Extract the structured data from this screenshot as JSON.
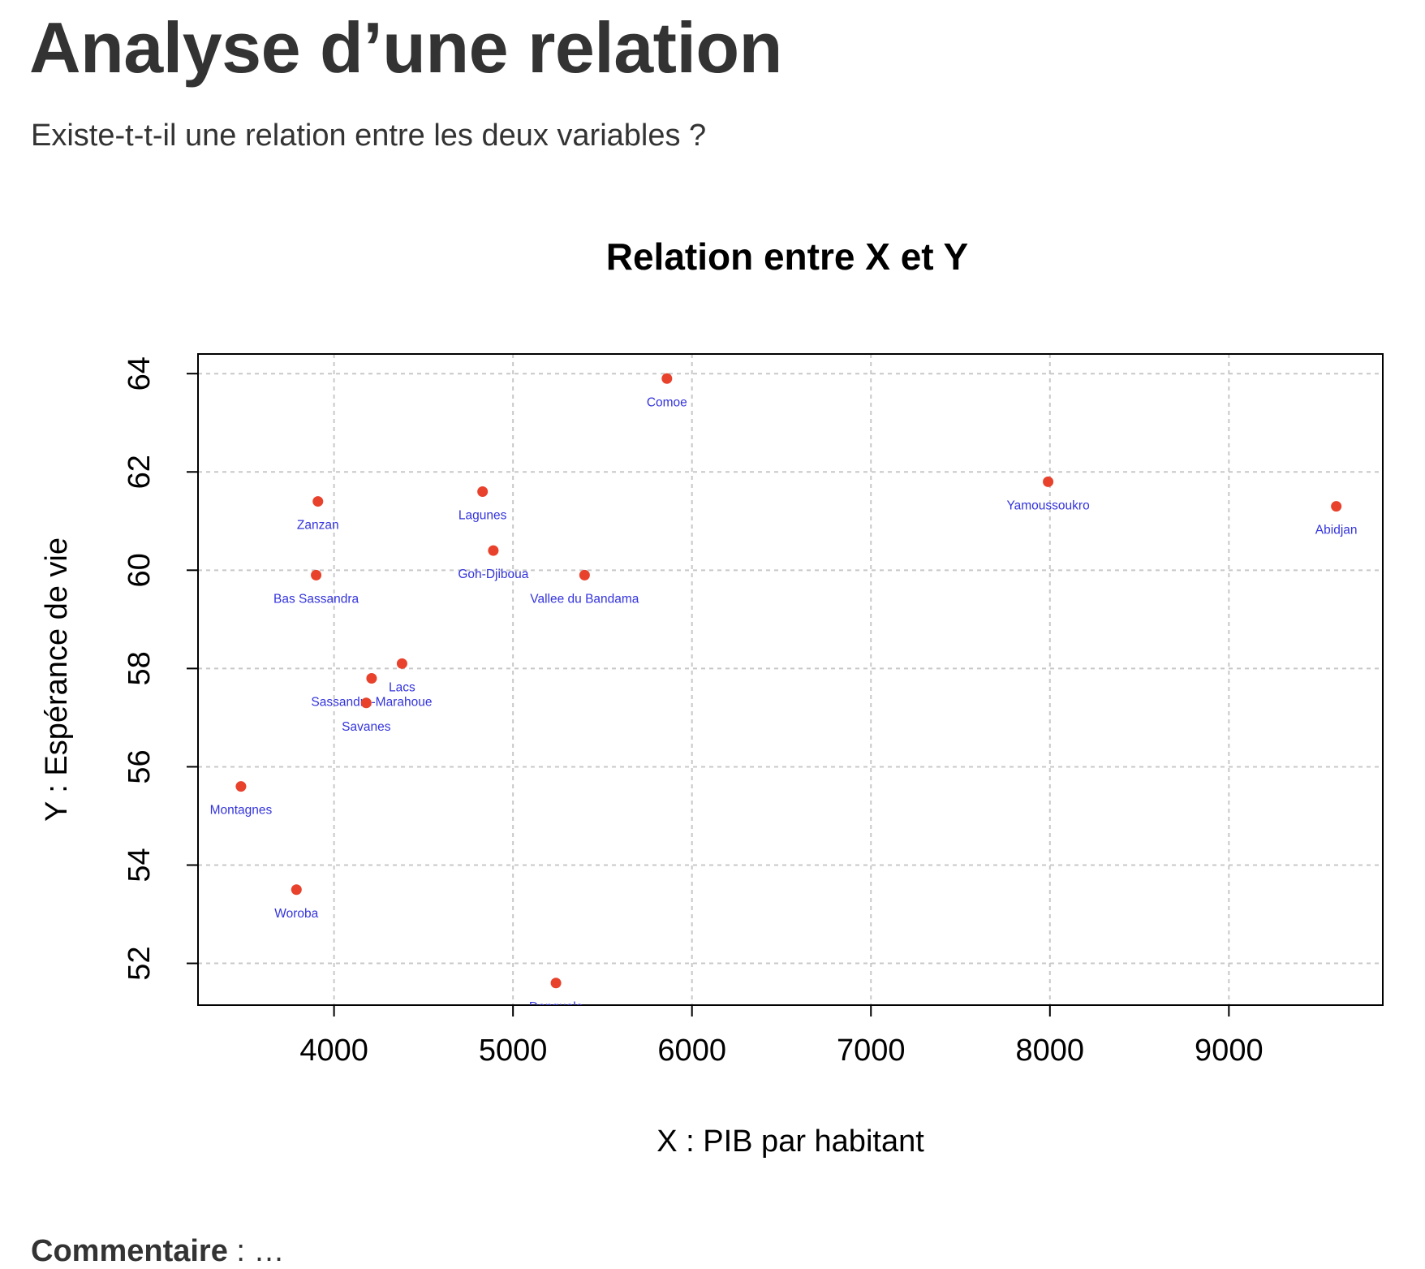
{
  "page": {
    "title": "Analyse d’une relation",
    "subtitle": "Existe-t-t-il une relation entre les deux variables ?",
    "comment_label": "Commentaire",
    "comment_text": " : …"
  },
  "chart_data": {
    "type": "scatter",
    "title": "Relation entre X et Y",
    "xlabel": "X : PIB par habitant",
    "ylabel": "Y : Espérance de vie",
    "xlim": [
      3240,
      9860
    ],
    "ylim": [
      51.15,
      64.4
    ],
    "xticks": [
      4000,
      5000,
      6000,
      7000,
      8000,
      9000
    ],
    "yticks": [
      52,
      54,
      56,
      58,
      60,
      62,
      64
    ],
    "grid": true,
    "point_color": "#e8412c",
    "label_color": "#3333dd",
    "points": [
      {
        "label": "Comoe",
        "x": 5860,
        "y": 63.9
      },
      {
        "label": "Zanzan",
        "x": 3910,
        "y": 61.4
      },
      {
        "label": "Lagunes",
        "x": 4830,
        "y": 61.6
      },
      {
        "label": "Yamoussoukro",
        "x": 7990,
        "y": 61.8
      },
      {
        "label": "Abidjan",
        "x": 9600,
        "y": 61.3
      },
      {
        "label": "Bas Sassandra",
        "x": 3900,
        "y": 59.9
      },
      {
        "label": "Goh-Djiboua",
        "x": 4890,
        "y": 60.4
      },
      {
        "label": "Vallee du Bandama",
        "x": 5400,
        "y": 59.9
      },
      {
        "label": "Lacs",
        "x": 4380,
        "y": 58.1
      },
      {
        "label": "Sassandra-Marahoue",
        "x": 4210,
        "y": 57.8
      },
      {
        "label": "Savanes",
        "x": 4180,
        "y": 57.3
      },
      {
        "label": "Montagnes",
        "x": 3480,
        "y": 55.6
      },
      {
        "label": "Woroba",
        "x": 3790,
        "y": 53.5
      },
      {
        "label": "Denguele",
        "x": 5240,
        "y": 51.6
      }
    ]
  }
}
